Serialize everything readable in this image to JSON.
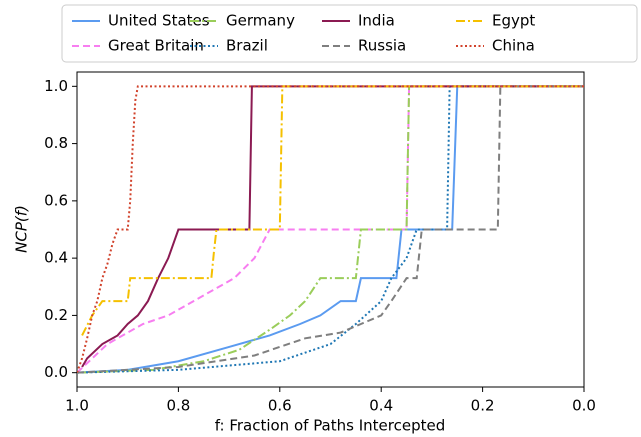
{
  "chart_data": {
    "type": "line",
    "xlabel": "f: Fraction of Paths Intercepted",
    "ylabel": "NCP(f)",
    "xlim": [
      1.0,
      0.0
    ],
    "ylim": [
      -0.05,
      1.05
    ],
    "xticks": [
      {
        "value": 1,
        "label": "1.0"
      },
      0.8,
      0.6,
      0.4,
      0.2,
      {
        "value": 0,
        "label": "0.0"
      }
    ],
    "yticks": [
      {
        "value": 0,
        "label": "0.0"
      },
      0.2,
      0.4,
      0.6,
      0.8,
      {
        "value": 1,
        "label": "1.0"
      }
    ],
    "legend": "top",
    "series": [
      {
        "name": "United States",
        "color": "#5b9bf0",
        "style": "solid",
        "x": [
          1.0,
          0.9,
          0.8,
          0.7,
          0.62,
          0.56,
          0.52,
          0.48,
          0.45,
          0.44,
          0.37,
          0.36,
          0.26,
          0.25,
          0.0
        ],
        "values": [
          0.0,
          0.01,
          0.04,
          0.09,
          0.13,
          0.17,
          0.2,
          0.25,
          0.25,
          0.33,
          0.33,
          0.5,
          0.5,
          1.0,
          1.0
        ]
      },
      {
        "name": "Great Britain",
        "color": "#f77ef0",
        "style": "dashed",
        "x": [
          1.0,
          0.97,
          0.94,
          0.9,
          0.87,
          0.82,
          0.77,
          0.69,
          0.65,
          0.62,
          0.35,
          0.345,
          0.0
        ],
        "values": [
          0.0,
          0.05,
          0.1,
          0.14,
          0.17,
          0.2,
          0.25,
          0.33,
          0.4,
          0.5,
          0.5,
          1.0,
          1.0
        ]
      },
      {
        "name": "Germany",
        "color": "#9acd5a",
        "style": "dashdot",
        "x": [
          1.0,
          0.85,
          0.75,
          0.68,
          0.62,
          0.58,
          0.55,
          0.52,
          0.45,
          0.44,
          0.35,
          0.345,
          0.0
        ],
        "values": [
          0.0,
          0.01,
          0.04,
          0.08,
          0.15,
          0.2,
          0.25,
          0.33,
          0.33,
          0.5,
          0.5,
          1.0,
          1.0
        ]
      },
      {
        "name": "Brazil",
        "color": "#1f77b4",
        "style": "dotted",
        "x": [
          1.0,
          0.8,
          0.6,
          0.5,
          0.45,
          0.4,
          0.38,
          0.35,
          0.33,
          0.27,
          0.265,
          0.0
        ],
        "values": [
          0.0,
          0.01,
          0.04,
          0.1,
          0.17,
          0.25,
          0.33,
          0.4,
          0.5,
          0.5,
          1.0,
          1.0
        ]
      },
      {
        "name": "India",
        "color": "#8b1a52",
        "style": "solid",
        "x": [
          0.99,
          0.98,
          0.95,
          0.92,
          0.9,
          0.88,
          0.86,
          0.84,
          0.82,
          0.8,
          0.66,
          0.655,
          0.0
        ],
        "values": [
          0.02,
          0.05,
          0.1,
          0.13,
          0.17,
          0.2,
          0.25,
          0.33,
          0.4,
          0.5,
          0.5,
          1.0,
          1.0
        ]
      },
      {
        "name": "Russia",
        "color": "#7f7f7f",
        "style": "dashed",
        "x": [
          1.0,
          0.8,
          0.65,
          0.55,
          0.48,
          0.44,
          0.4,
          0.38,
          0.35,
          0.33,
          0.32,
          0.17,
          0.165,
          0.0
        ],
        "values": [
          0.0,
          0.02,
          0.06,
          0.12,
          0.14,
          0.17,
          0.2,
          0.25,
          0.33,
          0.33,
          0.5,
          0.5,
          1.0,
          1.0
        ]
      },
      {
        "name": "Egypt",
        "color": "#f5c000",
        "style": "dashdot",
        "x": [
          0.99,
          0.97,
          0.95,
          0.9,
          0.895,
          0.735,
          0.73,
          0.725,
          0.6,
          0.595,
          0.0
        ],
        "values": [
          0.13,
          0.2,
          0.25,
          0.25,
          0.33,
          0.33,
          0.42,
          0.5,
          0.5,
          1.0,
          1.0
        ]
      },
      {
        "name": "China",
        "color": "#d1422b",
        "style": "dotted",
        "x": [
          1.0,
          0.99,
          0.98,
          0.97,
          0.96,
          0.95,
          0.94,
          0.93,
          0.92,
          0.9,
          0.895,
          0.89,
          0.885,
          0.88,
          0.0
        ],
        "values": [
          0.0,
          0.05,
          0.12,
          0.2,
          0.25,
          0.33,
          0.38,
          0.45,
          0.5,
          0.5,
          0.6,
          0.8,
          0.95,
          1.0,
          1.0
        ]
      }
    ]
  }
}
